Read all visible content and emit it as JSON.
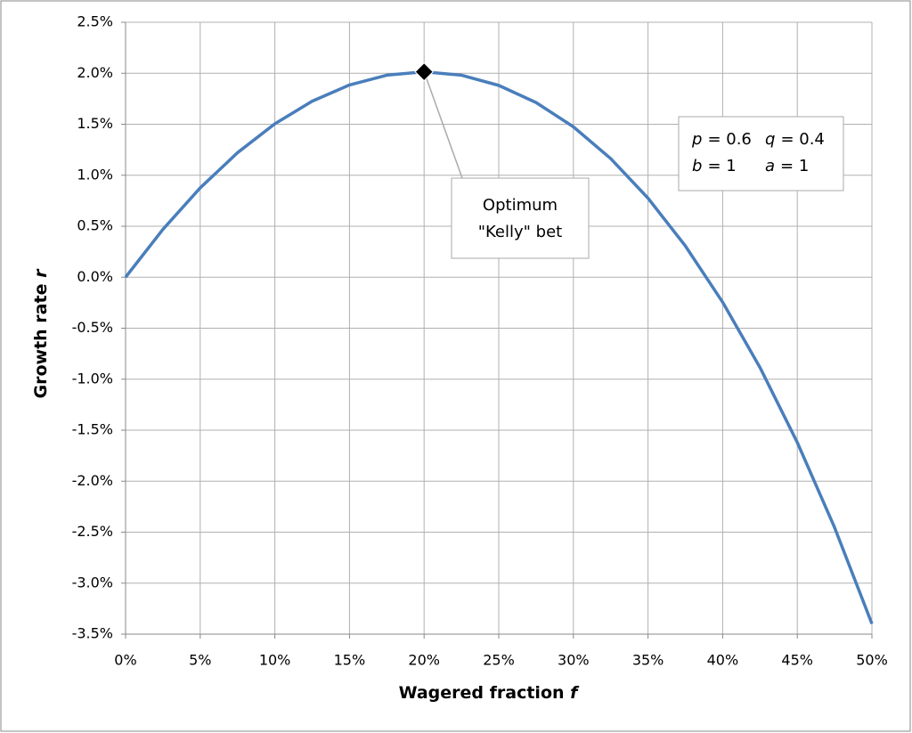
{
  "chart_data": {
    "type": "line",
    "x_label": "Wagered fraction",
    "x_label_var": "f",
    "y_label": "Growth rate",
    "y_label_var": "r",
    "x": [
      0,
      2.5,
      5,
      7.5,
      10,
      12.5,
      15,
      17.5,
      20,
      22.5,
      25,
      27.5,
      30,
      32.5,
      35,
      37.5,
      40,
      42.5,
      45,
      47.5,
      50
    ],
    "series": [
      {
        "name": "Growth rate",
        "color": "#4a7ebb",
        "values": [
          0,
          0.469,
          0.876,
          1.221,
          1.504,
          1.726,
          1.885,
          1.981,
          2.014,
          1.981,
          1.881,
          1.713,
          1.475,
          1.163,
          0.775,
          0.307,
          -0.245,
          -0.885,
          -1.62,
          -2.455,
          -3.398
        ]
      }
    ],
    "marker": {
      "x": 20,
      "y": 2.014,
      "color": "#000000"
    },
    "annotation": [
      "Optimum",
      "\"Kelly\" bet"
    ],
    "params": [
      [
        {
          "symbol": "p",
          "text": "= 0.6"
        },
        {
          "symbol": "q",
          "text": "= 0.4"
        }
      ],
      [
        {
          "symbol": "b",
          "text": "= 1"
        },
        {
          "symbol": "a",
          "text": "= 1"
        }
      ]
    ],
    "xlim": [
      0,
      50
    ],
    "xticks": [
      {
        "value": 0,
        "label": "0%"
      },
      {
        "value": 5,
        "label": "5%"
      },
      {
        "value": 10,
        "label": "10%"
      },
      {
        "value": 15,
        "label": "15%"
      },
      {
        "value": 20,
        "label": "20%"
      },
      {
        "value": 25,
        "label": "25%"
      },
      {
        "value": 30,
        "label": "30%"
      },
      {
        "value": 35,
        "label": "35%"
      },
      {
        "value": 40,
        "label": "40%"
      },
      {
        "value": 45,
        "label": "45%"
      },
      {
        "value": 50,
        "label": "50%"
      }
    ],
    "ylim": [
      -3.5,
      2.5
    ],
    "yticks": [
      {
        "value": -3.5,
        "label": "-3.5%"
      },
      {
        "value": -3,
        "label": "-3.0%"
      },
      {
        "value": -2.5,
        "label": "-2.5%"
      },
      {
        "value": -2,
        "label": "-2.0%"
      },
      {
        "value": -1.5,
        "label": "-1.5%"
      },
      {
        "value": -1,
        "label": "-1.0%"
      },
      {
        "value": -0.5,
        "label": "-0.5%"
      },
      {
        "value": 0,
        "label": "0.0%"
      },
      {
        "value": 0.5,
        "label": "0.5%"
      },
      {
        "value": 1,
        "label": "1.0%"
      },
      {
        "value": 1.5,
        "label": "1.5%"
      },
      {
        "value": 2,
        "label": "2.0%"
      },
      {
        "value": 2.5,
        "label": "2.5%"
      }
    ],
    "grid": true
  }
}
